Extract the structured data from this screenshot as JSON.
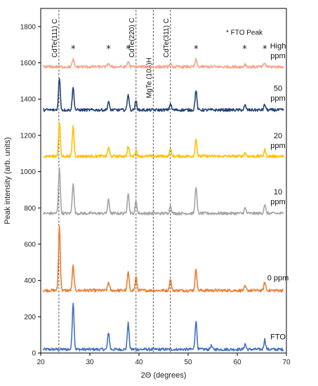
{
  "chart_data": {
    "type": "line",
    "title": "",
    "xlabel": "2Θ (degrees)",
    "ylabel": "Peak intensity (arb. units)",
    "xlim": [
      20,
      70
    ],
    "ylim": [
      0,
      1900
    ],
    "x_ticks": [
      20,
      30,
      40,
      50,
      60,
      70
    ],
    "y_ticks": [
      0,
      200,
      400,
      600,
      800,
      1000,
      1200,
      1400,
      1600,
      1800
    ],
    "grid": false,
    "legend_note": "* FTO Peak",
    "reference_lines": [
      {
        "label": "CdTe(111) C",
        "x": 23.7
      },
      {
        "label": "CdTe(220) C",
        "x": 39.4
      },
      {
        "label": "MgTe (103)H",
        "x": 42.9
      },
      {
        "label": "CdTe(311) C",
        "x": 46.4
      }
    ],
    "fto_markers": [
      26.6,
      33.8,
      37.8,
      51.6,
      61.5,
      65.6
    ],
    "series": [
      {
        "name": "FTO",
        "color": "#4472c4",
        "baseline": 20,
        "peaks": [
          [
            26.6,
            260
          ],
          [
            33.8,
            95
          ],
          [
            37.8,
            145
          ],
          [
            51.6,
            160
          ],
          [
            54.7,
            20
          ],
          [
            61.6,
            30
          ],
          [
            65.6,
            55
          ]
        ]
      },
      {
        "name": "0 ppm",
        "color": "#ed7d31",
        "baseline": 345,
        "peaks": [
          [
            23.8,
            355
          ],
          [
            26.6,
            135
          ],
          [
            33.8,
            45
          ],
          [
            37.8,
            100
          ],
          [
            39.4,
            75
          ],
          [
            46.4,
            65
          ],
          [
            51.6,
            120
          ],
          [
            61.6,
            20
          ],
          [
            65.6,
            45
          ]
        ]
      },
      {
        "name": "10 ppm",
        "color": "#a5a5a5",
        "baseline": 770,
        "peaks": [
          [
            23.8,
            255
          ],
          [
            26.6,
            170
          ],
          [
            33.8,
            75
          ],
          [
            37.8,
            115
          ],
          [
            39.4,
            70
          ],
          [
            46.4,
            45
          ],
          [
            51.6,
            150
          ],
          [
            61.6,
            30
          ],
          [
            65.6,
            50
          ]
        ]
      },
      {
        "name": "20 ppm",
        "color": "#ffc000",
        "baseline": 1085,
        "peaks": [
          [
            23.8,
            185
          ],
          [
            26.6,
            165
          ],
          [
            33.8,
            50
          ],
          [
            37.8,
            55
          ],
          [
            39.4,
            35
          ],
          [
            46.4,
            40
          ],
          [
            51.6,
            95
          ],
          [
            61.6,
            20
          ],
          [
            65.6,
            35
          ]
        ]
      },
      {
        "name": "50 ppm",
        "color": "#264478",
        "baseline": 1340,
        "peaks": [
          [
            23.8,
            175
          ],
          [
            26.6,
            125
          ],
          [
            33.8,
            45
          ],
          [
            37.8,
            90
          ],
          [
            39.4,
            50
          ],
          [
            46.4,
            35
          ],
          [
            51.6,
            110
          ],
          [
            61.6,
            25
          ],
          [
            65.6,
            30
          ]
        ]
      },
      {
        "name": "High ppm",
        "color": "#f4a58a",
        "baseline": 1578,
        "peaks": [
          [
            26.6,
            40
          ],
          [
            33.8,
            20
          ],
          [
            37.8,
            30
          ],
          [
            46.4,
            15
          ],
          [
            51.6,
            40
          ],
          [
            61.6,
            15
          ],
          [
            65.6,
            20
          ]
        ]
      }
    ],
    "series_labels": [
      {
        "lines": [
          "FTO"
        ],
        "y": 75
      },
      {
        "lines": [
          "0 ppm"
        ],
        "y": 400
      },
      {
        "lines": [
          "10",
          "ppm"
        ],
        "y": 875
      },
      {
        "lines": [
          "20",
          "ppm"
        ],
        "y": 1185
      },
      {
        "lines": [
          "50",
          "ppm"
        ],
        "y": 1445
      },
      {
        "lines": [
          "High",
          "ppm"
        ],
        "y": 1680
      }
    ]
  }
}
